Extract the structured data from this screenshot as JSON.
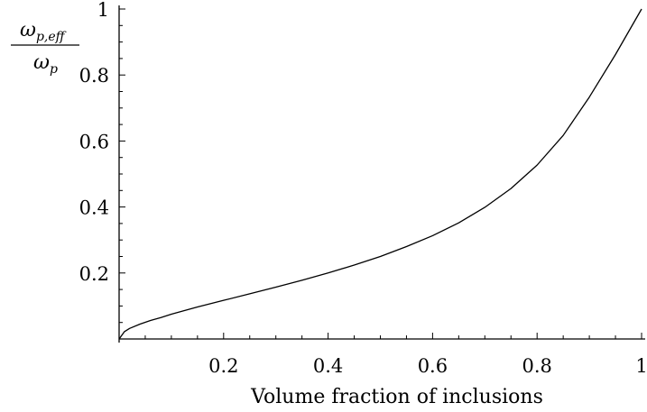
{
  "chart_data": {
    "type": "line",
    "title": "",
    "xlabel": "Volume fraction of inclusions",
    "ylabel": {
      "numerator_symbol": "ω",
      "numerator_subscript": "p,eff",
      "denominator_symbol": "ω",
      "denominator_subscript": "p"
    },
    "xlim": [
      0,
      1
    ],
    "ylim": [
      0,
      1
    ],
    "x_ticks": [
      {
        "value": 0.2,
        "label": "0.2"
      },
      {
        "value": 0.4,
        "label": "0.4"
      },
      {
        "value": 0.6,
        "label": "0.6"
      },
      {
        "value": 0.8,
        "label": "0.8"
      },
      {
        "value": 1.0,
        "label": "1"
      }
    ],
    "y_ticks": [
      {
        "value": 0.2,
        "label": "0.2"
      },
      {
        "value": 0.4,
        "label": "0.4"
      },
      {
        "value": 0.6,
        "label": "0.6"
      },
      {
        "value": 0.8,
        "label": "0.8"
      },
      {
        "value": 1.0,
        "label": "1"
      }
    ],
    "minor_tick_step": 0.05,
    "grid": false,
    "series": [
      {
        "color": "#000000",
        "x": [
          0,
          0.01,
          0.02,
          0.04,
          0.06,
          0.08,
          0.1,
          0.15,
          0.2,
          0.25,
          0.3,
          0.35,
          0.4,
          0.45,
          0.5,
          0.55,
          0.6,
          0.65,
          0.7,
          0.75,
          0.8,
          0.85,
          0.9,
          0.95,
          1.0
        ],
        "y": [
          0,
          0.022,
          0.032,
          0.045,
          0.056,
          0.065,
          0.075,
          0.097,
          0.117,
          0.137,
          0.157,
          0.178,
          0.2,
          0.224,
          0.25,
          0.28,
          0.313,
          0.352,
          0.399,
          0.456,
          0.527,
          0.617,
          0.733,
          0.862,
          1.0
        ]
      }
    ]
  }
}
